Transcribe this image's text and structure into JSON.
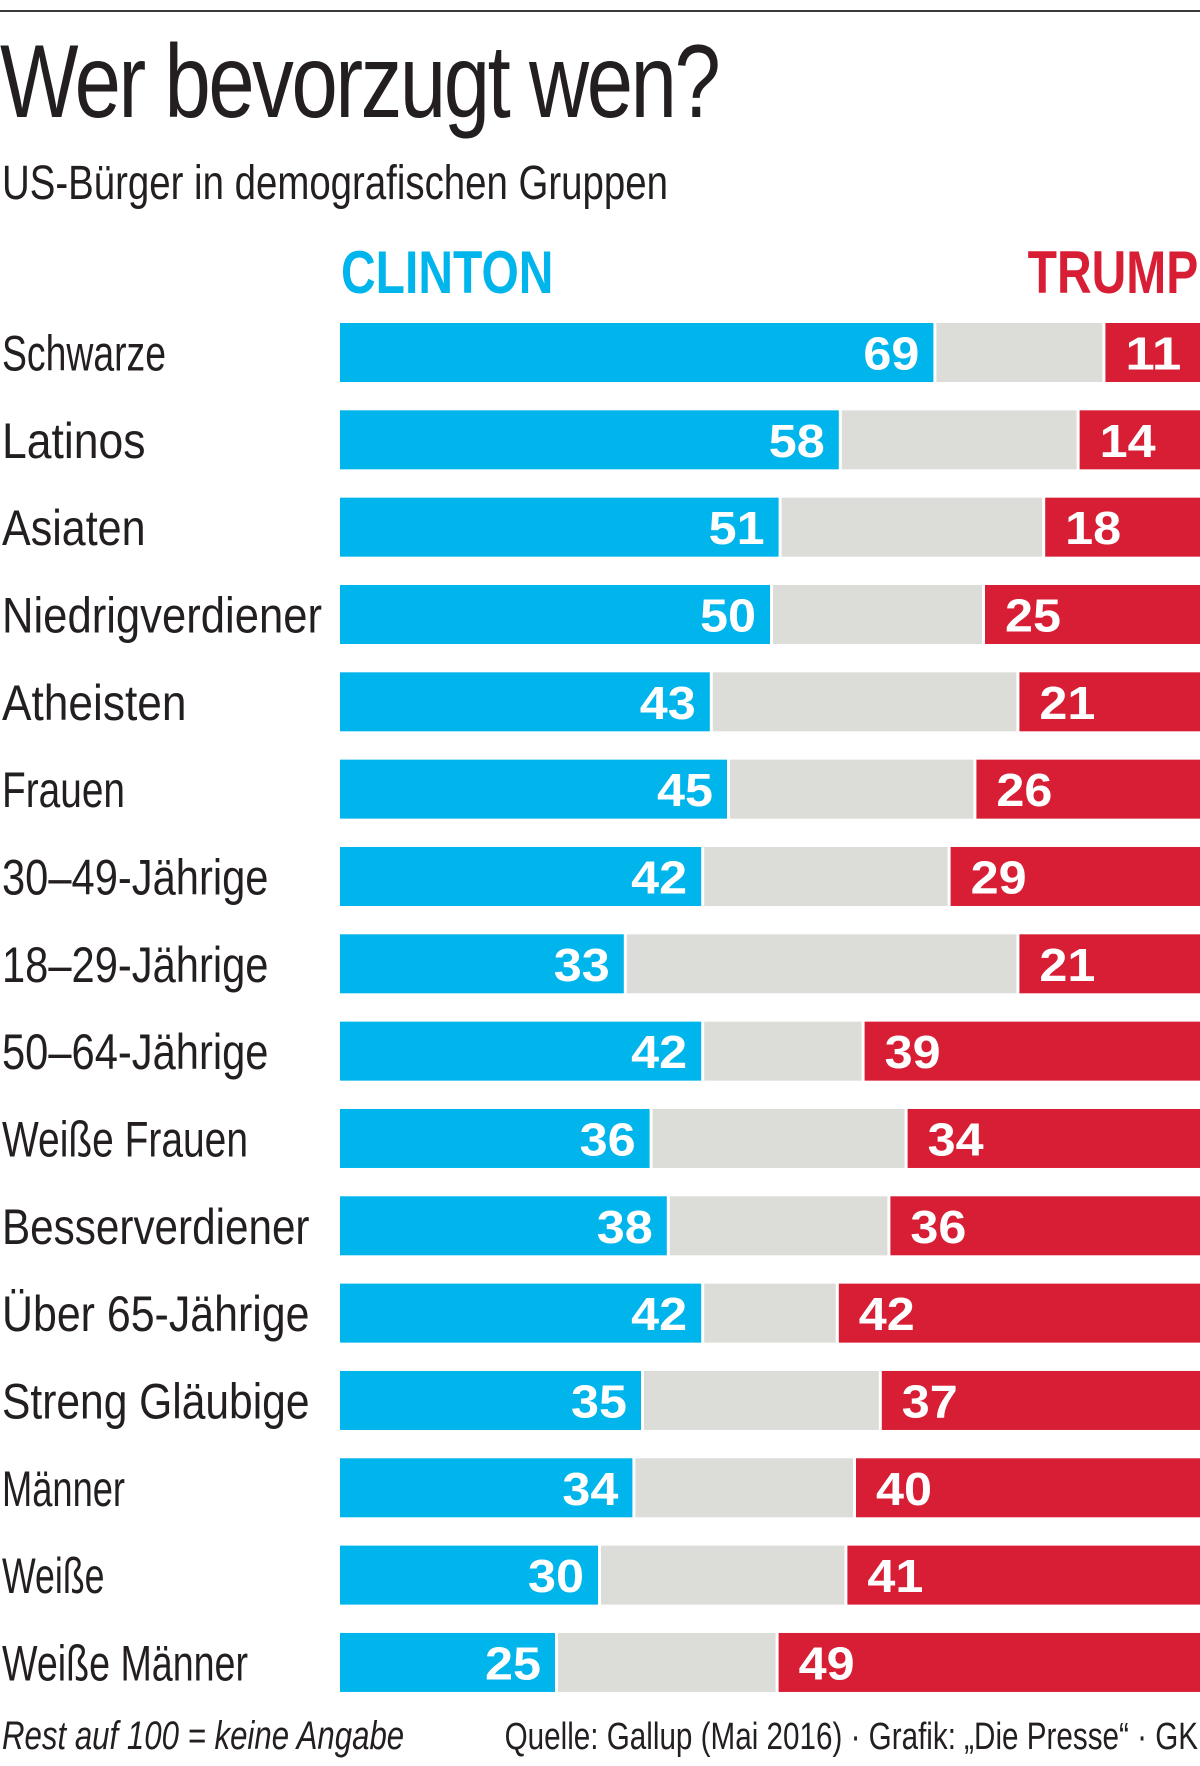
{
  "header": {
    "title": "Wer bevorzugt wen?",
    "subtitle": "US-Bürger in demografischen Gruppen"
  },
  "legend": {
    "clinton": "CLINTON",
    "trump": "TRUMP"
  },
  "colors": {
    "clinton": "#00b4ec",
    "rest": "#dcdcd8",
    "trump": "#d81e35",
    "text": "#231f20"
  },
  "footer": {
    "note": "Rest auf 100 = keine Angabe",
    "source": "Quelle: Gallup (Mai 2016) · Grafik: „Die Presse“ · GK"
  },
  "chart_data": {
    "type": "bar",
    "orientation": "horizontal-stacked",
    "title": "Wer bevorzugt wen?",
    "subtitle": "US-Bürger in demografischen Gruppen",
    "xlabel": "",
    "ylabel": "",
    "xlim": [
      0,
      100
    ],
    "grid": false,
    "legend_placement": "top",
    "categories": [
      "Schwarze",
      "Latinos",
      "Asiaten",
      "Niedrigverdiener",
      "Atheisten",
      "Frauen",
      "30–49-Jährige",
      "18–29-Jährige",
      "50–64-Jährige",
      "Weiße Frauen",
      "Besserverdiener",
      "Über 65-Jährige",
      "Streng Gläubige",
      "Männer",
      "Weiße",
      "Weiße Männer"
    ],
    "series": [
      {
        "name": "CLINTON",
        "values": [
          69,
          58,
          51,
          50,
          43,
          45,
          42,
          33,
          42,
          36,
          38,
          42,
          35,
          34,
          30,
          25
        ]
      },
      {
        "name": "keine Angabe",
        "values": [
          20,
          28,
          31,
          25,
          36,
          29,
          29,
          46,
          19,
          30,
          26,
          16,
          28,
          26,
          29,
          26
        ]
      },
      {
        "name": "TRUMP",
        "values": [
          11,
          14,
          18,
          25,
          21,
          26,
          29,
          21,
          39,
          34,
          36,
          42,
          37,
          40,
          41,
          49
        ]
      }
    ],
    "note": "Rest auf 100 = keine Angabe",
    "source": "Quelle: Gallup (Mai 2016) · Grafik: „Die Presse“ · GK"
  }
}
